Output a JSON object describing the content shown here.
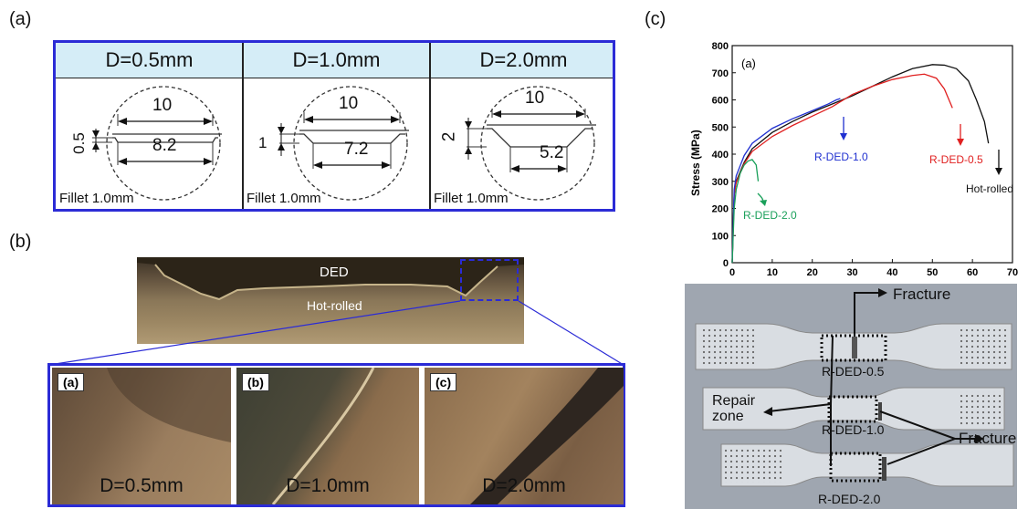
{
  "panels": {
    "a": "(a)",
    "b": "(b)",
    "c": "(c)"
  },
  "table": {
    "columns": [
      {
        "header": "D=0.5mm",
        "top_dim": "10",
        "bottom_dim": "8.2",
        "side_dim": "0.5",
        "fillet": "Fillet 1.0mm"
      },
      {
        "header": "D=1.0mm",
        "top_dim": "10",
        "bottom_dim": "7.2",
        "side_dim": "1",
        "fillet": "Fillet 1.0mm"
      },
      {
        "header": "D=2.0mm",
        "top_dim": "10",
        "bottom_dim": "5.2",
        "side_dim": "2",
        "fillet": "Fillet 1.0mm"
      }
    ]
  },
  "macro": {
    "top_label": "DED",
    "bottom_label": "Hot-rolled"
  },
  "micrographs": [
    {
      "tag": "(a)",
      "label": "D=0.5mm"
    },
    {
      "tag": "(b)",
      "label": "D=1.0mm"
    },
    {
      "tag": "(c)",
      "label": "D=2.0mm"
    }
  ],
  "chart_data": {
    "type": "line",
    "inner_label": "(a)",
    "xlabel": "",
    "ylabel": "Stress (MPa)",
    "xlim": [
      0,
      70
    ],
    "ylim": [
      0,
      800
    ],
    "xticks": [
      0,
      10,
      20,
      30,
      40,
      50,
      60,
      70
    ],
    "yticks": [
      0,
      100,
      200,
      300,
      400,
      500,
      600,
      700,
      800
    ],
    "series": [
      {
        "name": "Hot-rolled",
        "color": "#111111",
        "x": [
          0,
          0.5,
          1,
          3,
          5,
          10,
          15,
          20,
          25,
          30,
          35,
          40,
          45,
          50,
          53,
          56,
          59,
          61,
          63,
          64
        ],
        "y": [
          0,
          250,
          300,
          370,
          420,
          480,
          520,
          555,
          585,
          615,
          650,
          685,
          715,
          730,
          728,
          715,
          670,
          600,
          520,
          440
        ]
      },
      {
        "name": "R-DED-0.5",
        "color": "#e02020",
        "x": [
          0,
          0.5,
          1,
          3,
          5,
          10,
          15,
          20,
          25,
          30,
          35,
          40,
          45,
          48,
          51,
          53,
          55
        ],
        "y": [
          0,
          250,
          295,
          365,
          410,
          465,
          505,
          540,
          575,
          620,
          650,
          675,
          690,
          695,
          680,
          640,
          570
        ]
      },
      {
        "name": "R-DED-1.0",
        "color": "#2030d0",
        "x": [
          0,
          0.5,
          1,
          3,
          5,
          10,
          15,
          20,
          24,
          26,
          27
        ],
        "y": [
          0,
          270,
          320,
          395,
          440,
          495,
          530,
          560,
          585,
          600,
          605
        ]
      },
      {
        "name": "R-DED-2.0",
        "color": "#1aa05a",
        "x": [
          0,
          0.5,
          1,
          2,
          3,
          4,
          5,
          6,
          6.5
        ],
        "y": [
          0,
          200,
          270,
          330,
          360,
          375,
          380,
          360,
          300
        ]
      }
    ],
    "annotations": [
      "R-DED-1.0",
      "R-DED-0.5",
      "Hot-rolled",
      "R-DED-2.0"
    ]
  },
  "photo": {
    "fracture_top": "Fracture",
    "fracture_right": "Fracture",
    "repair_zone": "Repair zone",
    "specimens": [
      "R-DED-0.5",
      "R-DED-1.0",
      "R-DED-2.0"
    ]
  },
  "colors": {
    "border_blue": "#2b2bd6",
    "header_bg": "#d5edf7"
  }
}
